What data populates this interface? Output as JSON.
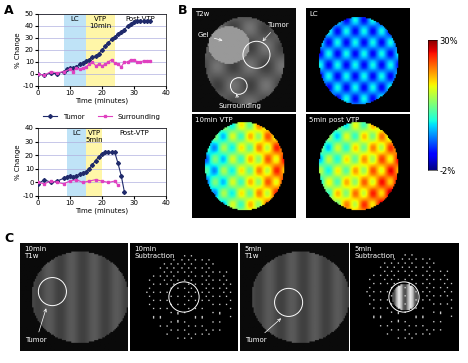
{
  "panel_labels": [
    "A",
    "B",
    "C"
  ],
  "chart_data": [
    {
      "type": "line",
      "x_label": "Time (minutes)",
      "y_label": "% Change",
      "xlim": [
        0,
        40
      ],
      "xticks": [
        0,
        10,
        20,
        30,
        40
      ],
      "ylim": [
        -10,
        50
      ],
      "yticks": [
        -10,
        0,
        10,
        20,
        30,
        40,
        50
      ],
      "grid": true,
      "legend": "upper center",
      "regions": [
        {
          "label": "LC",
          "start": 8,
          "end": 15,
          "color": "#bfe3f7"
        },
        {
          "label": "VTP\n10min",
          "start": 15,
          "end": 24,
          "color": "#fff6a8"
        }
      ],
      "annotations": [
        "Post-VTP"
      ],
      "series": [
        {
          "name": "Tumor",
          "color": "#1f2a6b",
          "marker": "diamond",
          "line_style": "solid",
          "x": [
            0,
            2,
            4,
            6,
            8,
            9,
            10,
            11,
            12,
            13,
            14,
            15,
            16,
            17,
            18,
            19,
            20,
            21,
            22,
            23,
            24,
            25,
            26,
            27,
            28,
            29,
            30,
            31,
            32,
            33,
            34,
            35
          ],
          "values": [
            0,
            -1,
            1,
            0,
            2,
            4,
            5,
            5,
            6,
            8,
            9,
            11,
            12,
            14,
            15,
            17,
            20,
            23,
            26,
            29,
            31,
            33,
            35,
            37,
            40,
            42,
            43,
            44,
            44,
            44,
            44,
            44
          ]
        },
        {
          "name": "Surrounding",
          "color": "#e040c0",
          "marker": "square",
          "line_style": "solid",
          "x": [
            0,
            2,
            4,
            6,
            8,
            10,
            11,
            12,
            13,
            14,
            15,
            16,
            17,
            18,
            19,
            20,
            21,
            22,
            23,
            24,
            25,
            26,
            27,
            28,
            29,
            30,
            31,
            32,
            33,
            34,
            35
          ],
          "values": [
            0,
            -1,
            2,
            1,
            2,
            4,
            2,
            5,
            4,
            5,
            6,
            8,
            10,
            7,
            8,
            7,
            8,
            10,
            12,
            9,
            8,
            6,
            10,
            10,
            12,
            12,
            10,
            10,
            11,
            11,
            11
          ]
        }
      ]
    },
    {
      "type": "line",
      "x_label": "Time (minutes)",
      "y_label": "% Change",
      "xlim": [
        0,
        40
      ],
      "xticks": [
        0,
        10,
        20,
        30,
        40
      ],
      "ylim": [
        -10,
        40
      ],
      "yticks": [
        -10,
        0,
        10,
        20,
        30,
        40
      ],
      "grid": true,
      "regions": [
        {
          "label": "LC",
          "start": 9,
          "end": 15,
          "color": "#bfe3f7"
        },
        {
          "label": "VTP\n5min",
          "start": 15,
          "end": 20,
          "color": "#fff6a8"
        }
      ],
      "annotations": [
        "Post-VTP"
      ],
      "series": [
        {
          "name": "Tumor",
          "color": "#1f2a6b",
          "marker": "diamond",
          "line_style": "solid",
          "x": [
            0,
            2,
            4,
            6,
            8,
            9,
            10,
            11,
            12,
            13,
            14,
            15,
            16,
            17,
            18,
            19,
            20,
            21,
            22,
            23,
            24,
            25,
            26,
            27
          ],
          "values": [
            -1,
            2,
            0,
            1,
            3,
            4,
            5,
            4,
            5,
            6,
            7,
            8,
            10,
            13,
            16,
            19,
            21,
            22,
            22,
            22,
            22,
            14,
            5,
            -7
          ]
        },
        {
          "name": "Surrounding",
          "color": "#e040c0",
          "marker": "square",
          "line_style": "solid",
          "x": [
            0,
            2,
            4,
            6,
            8,
            10,
            12,
            14,
            16,
            18,
            20,
            22,
            24,
            25
          ],
          "values": [
            0,
            -1,
            1,
            0,
            -1,
            1,
            2,
            0,
            1,
            2,
            1,
            0,
            1,
            -2
          ]
        }
      ]
    }
  ],
  "images": {
    "B": {
      "panels": [
        {
          "title": "T2w",
          "annotations": [
            "Gel",
            "Tumor",
            "Surrounding"
          ]
        },
        {
          "title": "LC"
        },
        {
          "title": "10min VTP"
        },
        {
          "title": "5min post VTP"
        }
      ],
      "colorbar": {
        "range": [
          -2,
          30
        ],
        "ticks": [
          {
            "value": 30,
            "label": "30%"
          },
          {
            "value": -2,
            "label": "-2%"
          }
        ]
      }
    },
    "C": {
      "panels": [
        {
          "title": "10min\nT1w",
          "annotations": [
            "Tumor"
          ]
        },
        {
          "title": "10min\nSubtraction"
        },
        {
          "title": "5min\nT1w",
          "annotations": [
            "Tumor"
          ]
        },
        {
          "title": "5min\nSubtraction"
        }
      ]
    }
  }
}
